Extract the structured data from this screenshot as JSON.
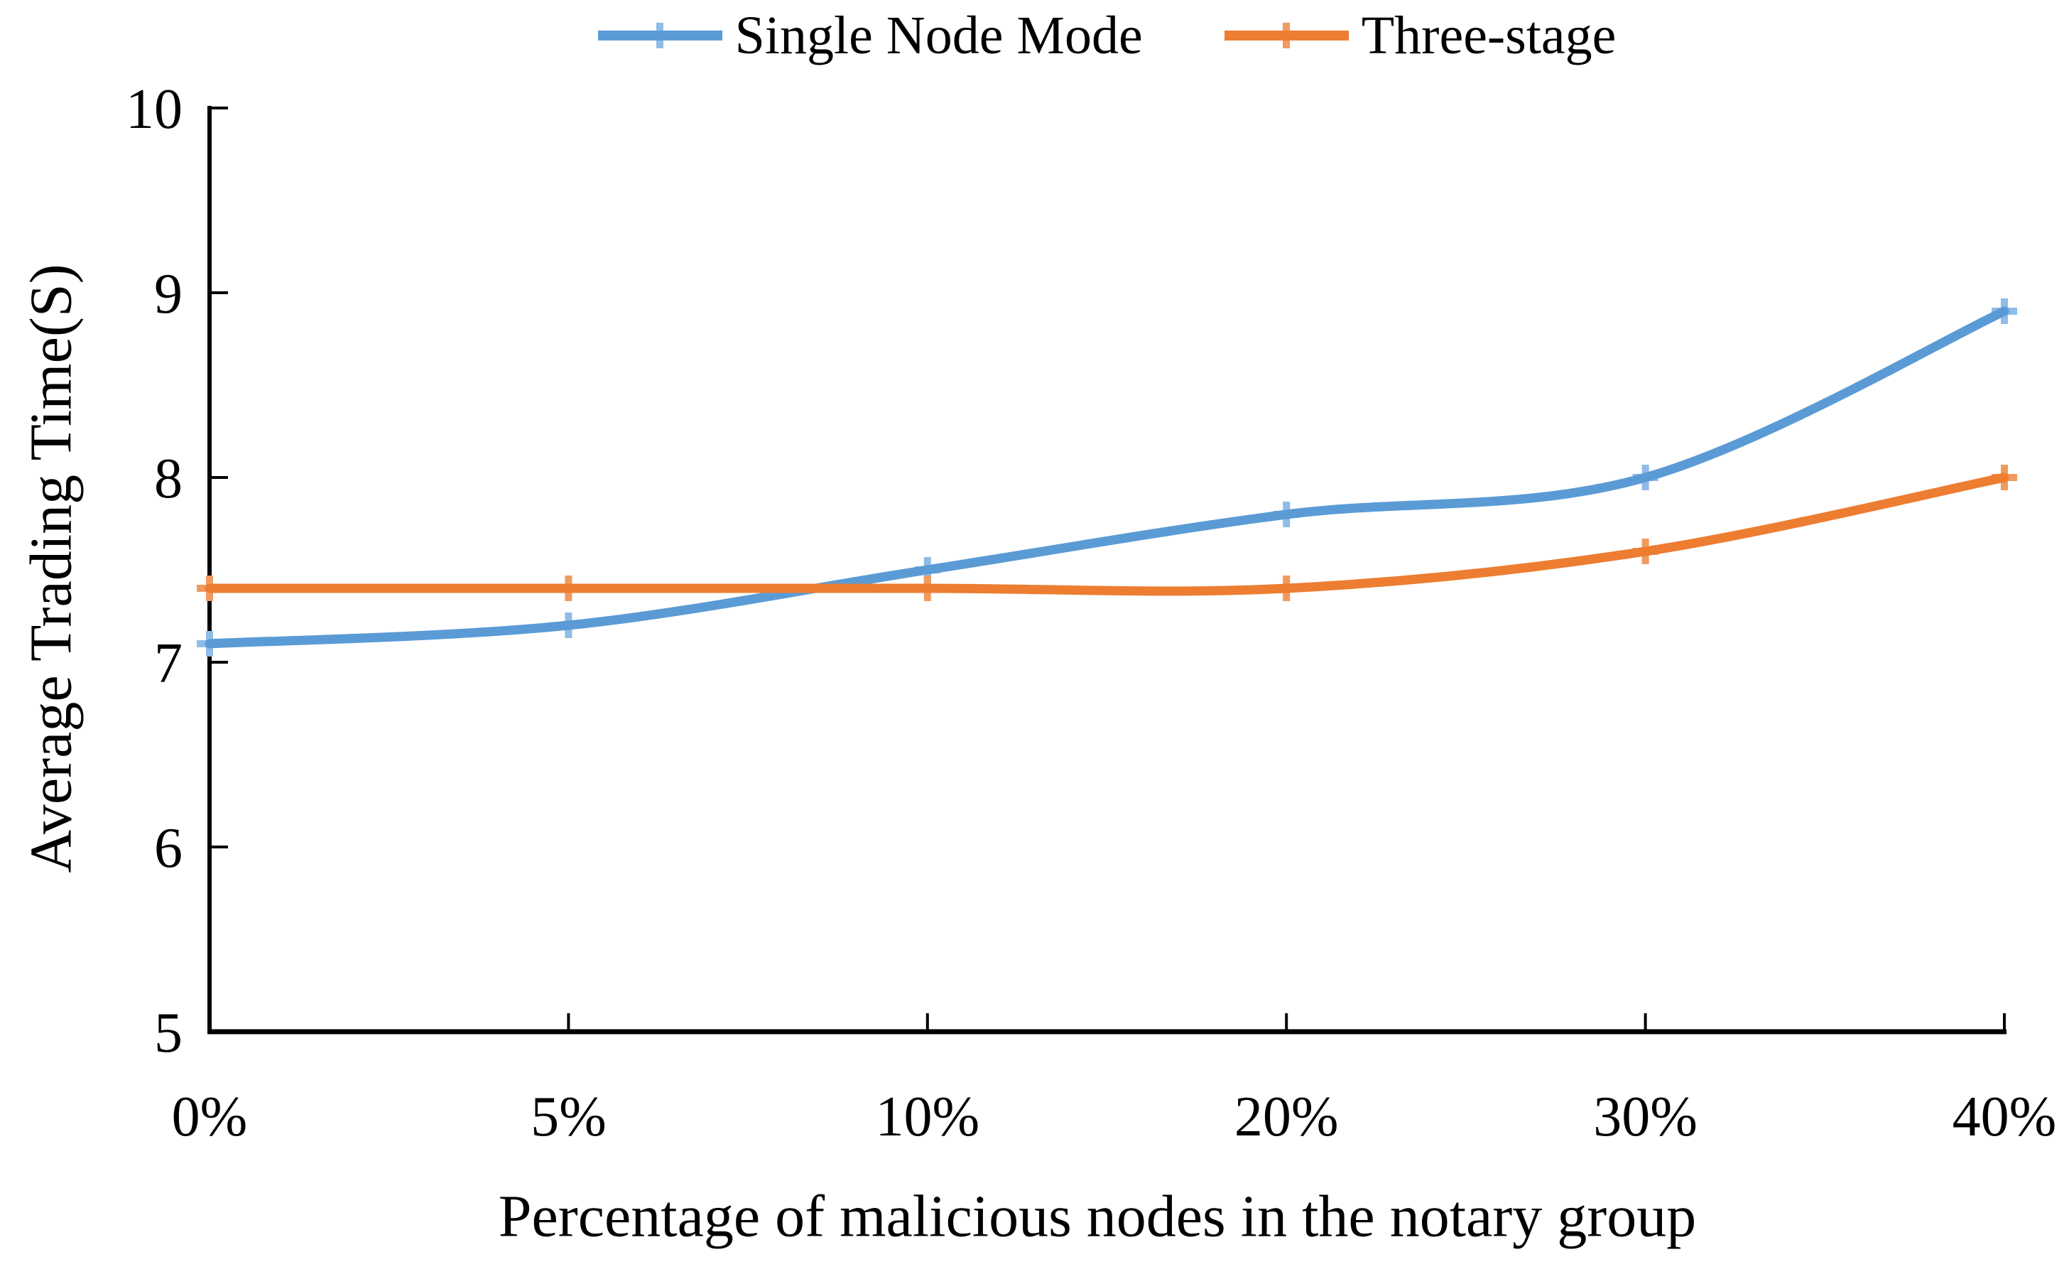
{
  "figure": {
    "background": "#ffffff"
  },
  "chart_data": {
    "type": "line",
    "title": "",
    "xlabel": "Percentage of malicious nodes in the notary group",
    "ylabel": "Average Trading Time(S)",
    "categories": [
      "0%",
      "5%",
      "10%",
      "20%",
      "30%",
      "40%"
    ],
    "series": [
      {
        "name": "Single Node Mode",
        "color": "#5B9BD5",
        "marker_color": "#8FBCE8",
        "marker": "plus",
        "values": [
          7.1,
          7.2,
          7.5,
          7.8,
          8.0,
          8.9
        ]
      },
      {
        "name": "Three-stage",
        "color": "#ED7D31",
        "marker_color": "#F19A5F",
        "marker": "plus",
        "values": [
          7.4,
          7.4,
          7.4,
          7.4,
          7.6,
          8.0
        ]
      }
    ],
    "ylim": [
      5,
      10
    ],
    "y_ticks": [
      5,
      6,
      7,
      8,
      9,
      10
    ],
    "grid": false,
    "legend_position": "top",
    "smooth": true,
    "axis_color": "#000000",
    "text_color": "#000000"
  }
}
